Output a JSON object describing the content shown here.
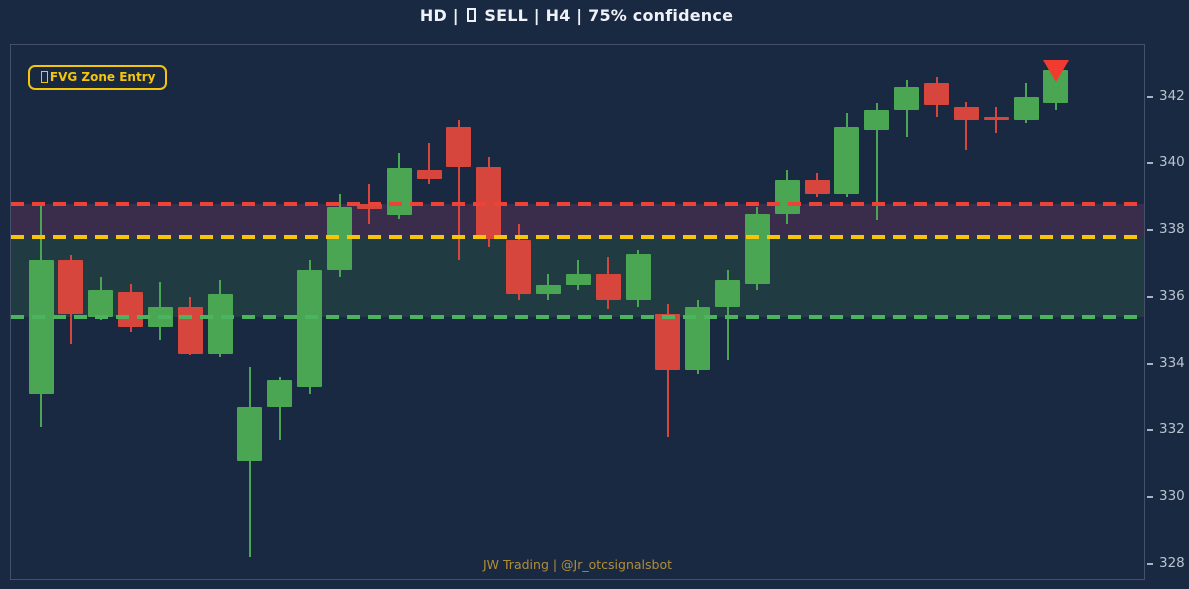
{
  "header": {
    "title_prefix": "HD |",
    "title_suffix": "SELL | H4 | 75% confidence"
  },
  "legend": {
    "label": "FVG Zone Entry"
  },
  "footer": {
    "watermark": "JW Trading | @Jr_otcsignalsbot"
  },
  "colors": {
    "background": "#1a2942",
    "bull": "#4aa653",
    "bear": "#d6463c",
    "entry_line": "#ee4237",
    "mid_line": "#f5c50a",
    "lower_line": "#4cb35e",
    "upper_zone": "#3a2d4c",
    "lower_zone": "#213b42",
    "marker": "#f23b30",
    "axis_border": "#46506a",
    "tick_text": "#b9c3cf"
  },
  "chart_data": {
    "type": "candlestick",
    "title": "HD | □ SELL | H4 | 75% confidence",
    "timeframe": "H4",
    "signal": "SELL",
    "confidence_pct": 75,
    "ylim": [
      327.55,
      343.55
    ],
    "yticks": [
      328,
      330,
      332,
      334,
      336,
      338,
      340,
      342
    ],
    "grid": false,
    "legend_position": "top-left",
    "levels": [
      {
        "name": "entry",
        "price": 338.8,
        "color": "#ee4237",
        "style": "dashed"
      },
      {
        "name": "middle",
        "price": 337.8,
        "color": "#f5c50a",
        "style": "dashed"
      },
      {
        "name": "lower",
        "price": 335.4,
        "color": "#4cb35e",
        "style": "dashed"
      }
    ],
    "zones": [
      {
        "name": "fvg-upper",
        "from": 338.8,
        "to": 337.8,
        "color": "#3a2d4c"
      },
      {
        "name": "fvg-lower",
        "from": 337.8,
        "to": 335.4,
        "color": "#213b42"
      }
    ],
    "marker": {
      "candle_index": 34,
      "price": 342.8,
      "direction": "down",
      "color": "#f23b30"
    },
    "candles": [
      {
        "o": 333.1,
        "h": 338.8,
        "l": 332.1,
        "c": 337.1
      },
      {
        "o": 337.1,
        "h": 337.25,
        "l": 334.6,
        "c": 335.5
      },
      {
        "o": 335.4,
        "h": 336.6,
        "l": 335.3,
        "c": 336.2
      },
      {
        "o": 336.15,
        "h": 336.4,
        "l": 334.95,
        "c": 335.1
      },
      {
        "o": 335.1,
        "h": 336.45,
        "l": 334.7,
        "c": 335.7
      },
      {
        "o": 335.7,
        "h": 336.0,
        "l": 334.25,
        "c": 334.3
      },
      {
        "o": 334.3,
        "h": 336.5,
        "l": 334.2,
        "c": 336.1
      },
      {
        "o": 331.1,
        "h": 333.9,
        "l": 328.2,
        "c": 332.7
      },
      {
        "o": 332.7,
        "h": 333.6,
        "l": 331.7,
        "c": 333.5
      },
      {
        "o": 333.3,
        "h": 337.1,
        "l": 333.1,
        "c": 336.8
      },
      {
        "o": 336.8,
        "h": 339.1,
        "l": 336.6,
        "c": 338.7
      },
      {
        "o": 338.8,
        "h": 339.4,
        "l": 338.2,
        "c": 338.65
      },
      {
        "o": 338.45,
        "h": 340.3,
        "l": 338.35,
        "c": 339.85
      },
      {
        "o": 339.8,
        "h": 340.6,
        "l": 339.4,
        "c": 339.55
      },
      {
        "o": 341.1,
        "h": 341.3,
        "l": 337.1,
        "c": 339.9
      },
      {
        "o": 339.9,
        "h": 340.2,
        "l": 337.5,
        "c": 337.75
      },
      {
        "o": 337.7,
        "h": 338.2,
        "l": 335.9,
        "c": 336.1
      },
      {
        "o": 336.1,
        "h": 336.7,
        "l": 335.9,
        "c": 336.35
      },
      {
        "o": 336.35,
        "h": 337.1,
        "l": 336.2,
        "c": 336.7
      },
      {
        "o": 336.7,
        "h": 337.2,
        "l": 335.65,
        "c": 335.9
      },
      {
        "o": 335.9,
        "h": 337.4,
        "l": 335.7,
        "c": 337.3
      },
      {
        "o": 335.5,
        "h": 335.8,
        "l": 331.8,
        "c": 333.8
      },
      {
        "o": 333.8,
        "h": 335.9,
        "l": 333.7,
        "c": 335.7
      },
      {
        "o": 335.7,
        "h": 336.8,
        "l": 334.1,
        "c": 336.5
      },
      {
        "o": 336.4,
        "h": 338.7,
        "l": 336.2,
        "c": 338.5
      },
      {
        "o": 338.5,
        "h": 339.8,
        "l": 338.2,
        "c": 339.5
      },
      {
        "o": 339.5,
        "h": 339.7,
        "l": 339.0,
        "c": 339.1
      },
      {
        "o": 339.1,
        "h": 341.5,
        "l": 339.0,
        "c": 341.1
      },
      {
        "o": 341.0,
        "h": 341.8,
        "l": 338.3,
        "c": 341.6
      },
      {
        "o": 341.6,
        "h": 342.5,
        "l": 340.8,
        "c": 342.3
      },
      {
        "o": 342.4,
        "h": 342.6,
        "l": 341.4,
        "c": 341.75
      },
      {
        "o": 341.7,
        "h": 341.85,
        "l": 340.4,
        "c": 341.3
      },
      {
        "o": 341.4,
        "h": 341.7,
        "l": 340.9,
        "c": 341.3
      },
      {
        "o": 341.3,
        "h": 342.4,
        "l": 341.2,
        "c": 342.0
      },
      {
        "o": 341.8,
        "h": 342.8,
        "l": 341.6,
        "c": 342.8
      }
    ]
  }
}
